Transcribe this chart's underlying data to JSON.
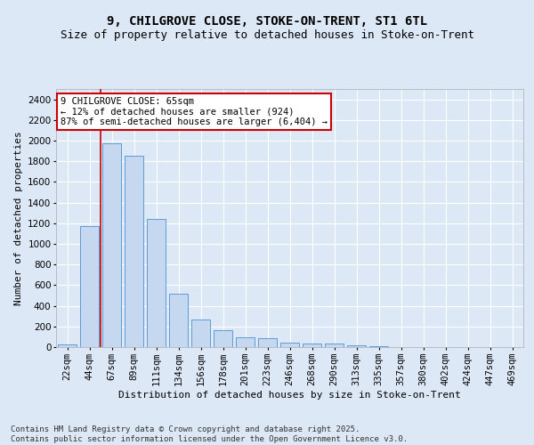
{
  "title1": "9, CHILGROVE CLOSE, STOKE-ON-TRENT, ST1 6TL",
  "title2": "Size of property relative to detached houses in Stoke-on-Trent",
  "xlabel": "Distribution of detached houses by size in Stoke-on-Trent",
  "ylabel": "Number of detached properties",
  "categories": [
    "22sqm",
    "44sqm",
    "67sqm",
    "89sqm",
    "111sqm",
    "134sqm",
    "156sqm",
    "178sqm",
    "201sqm",
    "223sqm",
    "246sqm",
    "268sqm",
    "290sqm",
    "313sqm",
    "335sqm",
    "357sqm",
    "380sqm",
    "402sqm",
    "424sqm",
    "447sqm",
    "469sqm"
  ],
  "values": [
    22,
    1175,
    1975,
    1850,
    1245,
    515,
    270,
    160,
    95,
    90,
    45,
    38,
    32,
    15,
    5,
    3,
    2,
    1,
    1,
    1,
    0
  ],
  "bar_color": "#c5d8f0",
  "bar_edge_color": "#5b9bd5",
  "annotation_text": "9 CHILGROVE CLOSE: 65sqm\n← 12% of detached houses are smaller (924)\n87% of semi-detached houses are larger (6,404) →",
  "annotation_box_color": "#ffffff",
  "annotation_box_edge": "#cc0000",
  "vline_color": "#cc0000",
  "vline_x": 1.5,
  "ylim": [
    0,
    2500
  ],
  "yticks": [
    0,
    200,
    400,
    600,
    800,
    1000,
    1200,
    1400,
    1600,
    1800,
    2000,
    2200,
    2400
  ],
  "background_color": "#dce8f5",
  "plot_bg_color": "#dce8f5",
  "footer_text": "Contains HM Land Registry data © Crown copyright and database right 2025.\nContains public sector information licensed under the Open Government Licence v3.0.",
  "title_fontsize": 10,
  "subtitle_fontsize": 9,
  "axis_label_fontsize": 8,
  "tick_fontsize": 7.5
}
